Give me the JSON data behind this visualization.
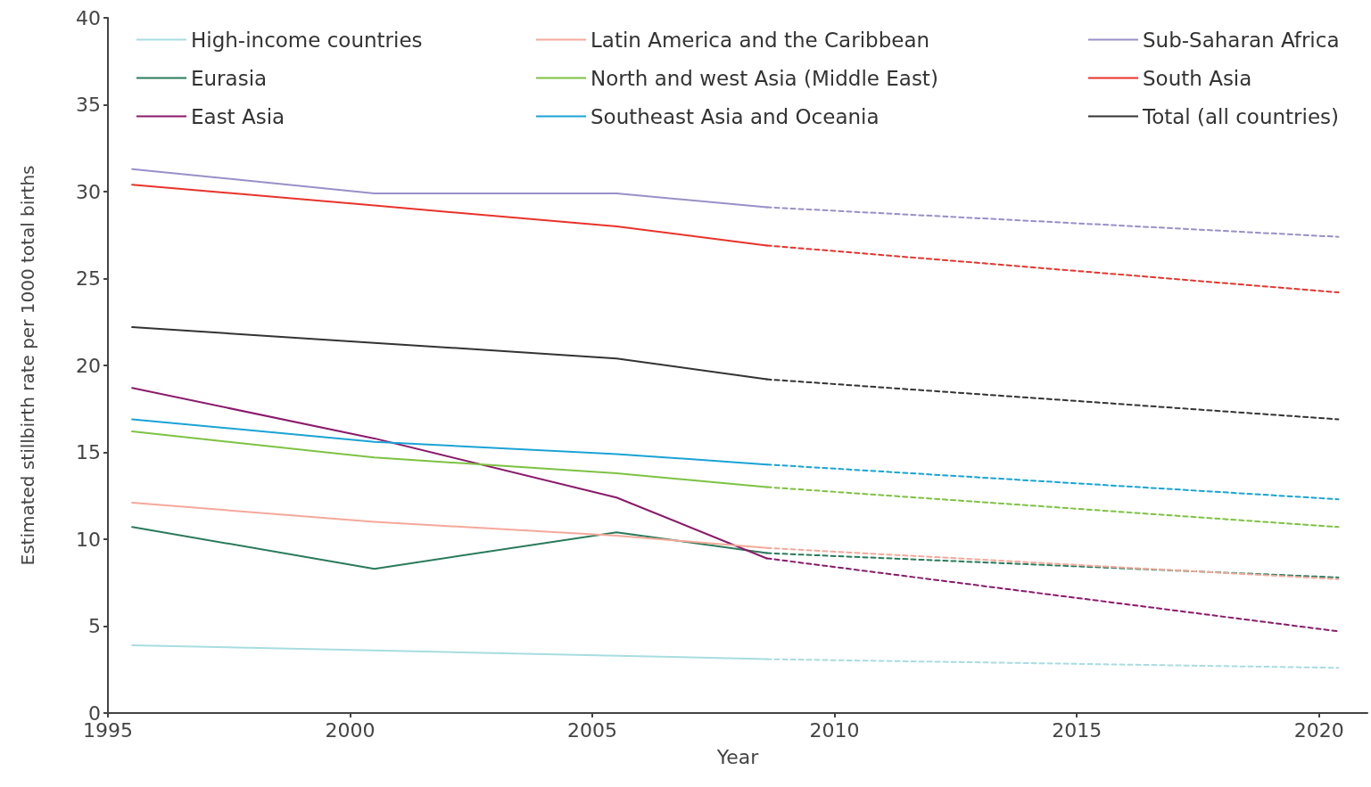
{
  "chart_data": {
    "type": "line",
    "xlabel": "Year",
    "ylabel": "Estimated stillbirth rate per 1000 total births",
    "xlim": [
      1995,
      2021
    ],
    "xticks": [
      1995,
      2000,
      2005,
      2010,
      2015,
      2020
    ],
    "ylim": [
      0,
      40
    ],
    "yticks": [
      0,
      5,
      10,
      15,
      20,
      25,
      30,
      35,
      40
    ],
    "grid": false,
    "legend": "top",
    "marker": "none",
    "series": [
      {
        "name": "High-income countries",
        "color": "#a8dde0",
        "line_style": "solid",
        "x": [
          1995.5,
          2000.5,
          2005.5,
          2008.6
        ],
        "values": [
          3.9,
          3.6,
          3.3,
          3.1
        ]
      },
      {
        "name": "Eurasia",
        "color": "#2a7a5a",
        "line_style": "solid",
        "x": [
          1995.5,
          2000.5,
          2005.5,
          2008.6
        ],
        "values": [
          10.7,
          8.3,
          10.4,
          9.2
        ]
      },
      {
        "name": "East Asia",
        "color": "#8b1a6b",
        "line_style": "solid",
        "x": [
          1995.5,
          2000.5,
          2005.5,
          2008.6
        ],
        "values": [
          18.7,
          15.8,
          12.4,
          8.9
        ]
      },
      {
        "name": "Latin America and the Caribbean",
        "color": "#f4a99a",
        "line_style": "solid",
        "x": [
          1995.5,
          2000.5,
          2005.5,
          2008.6
        ],
        "values": [
          12.1,
          11.0,
          10.2,
          9.5
        ]
      },
      {
        "name": "North and west Asia (Middle East)",
        "color": "#7dc242",
        "line_style": "solid",
        "x": [
          1995.5,
          2000.5,
          2005.5,
          2008.6
        ],
        "values": [
          16.2,
          14.7,
          13.8,
          13.0
        ]
      },
      {
        "name": "Southeast Asia and Oceania",
        "color": "#1aa3d4",
        "line_style": "solid",
        "x": [
          1995.5,
          2000.5,
          2005.5,
          2008.6
        ],
        "values": [
          16.9,
          15.6,
          14.9,
          14.3
        ]
      },
      {
        "name": "Sub-Saharan Africa",
        "color": "#9a8fc8",
        "line_style": "solid",
        "x": [
          1995.5,
          2000.5,
          2005.5,
          2008.6
        ],
        "values": [
          31.3,
          29.9,
          29.9,
          29.1
        ]
      },
      {
        "name": "South Asia",
        "color": "#e8332a",
        "line_style": "solid",
        "x": [
          1995.5,
          2000.5,
          2005.5,
          2008.6
        ],
        "values": [
          30.4,
          29.2,
          28.0,
          26.9
        ]
      },
      {
        "name": "Total (all countries)",
        "color": "#333333",
        "line_style": "solid",
        "x": [
          1995.5,
          2000.5,
          2005.5,
          2008.6
        ],
        "values": [
          22.2,
          21.3,
          20.4,
          19.2
        ]
      },
      {
        "color": "#a8dde0",
        "line_style": "dashed",
        "x": [
          2008.6,
          2020.4
        ],
        "values": [
          3.1,
          2.6
        ]
      },
      {
        "color": "#2a7a5a",
        "line_style": "dashed",
        "x": [
          2008.6,
          2020.4
        ],
        "values": [
          9.2,
          7.8
        ]
      },
      {
        "color": "#8b1a6b",
        "line_style": "dashed",
        "x": [
          2008.6,
          2020.4
        ],
        "values": [
          8.9,
          4.7
        ]
      },
      {
        "color": "#f4a99a",
        "line_style": "dashed",
        "x": [
          2008.6,
          2020.4
        ],
        "values": [
          9.5,
          7.7
        ]
      },
      {
        "color": "#7dc242",
        "line_style": "dashed",
        "x": [
          2008.6,
          2020.4
        ],
        "values": [
          13.0,
          10.7
        ]
      },
      {
        "color": "#1aa3d4",
        "line_style": "dashed",
        "x": [
          2008.6,
          2020.4
        ],
        "values": [
          14.3,
          12.3
        ]
      },
      {
        "color": "#9a8fc8",
        "line_style": "dashed",
        "x": [
          2008.6,
          2020.4
        ],
        "values": [
          29.1,
          27.4
        ]
      },
      {
        "color": "#e8332a",
        "line_style": "dashed",
        "x": [
          2008.6,
          2020.4
        ],
        "values": [
          26.9,
          24.2
        ]
      },
      {
        "color": "#333333",
        "line_style": "dashed",
        "x": [
          2008.6,
          2020.4
        ],
        "values": [
          19.2,
          16.9
        ]
      }
    ]
  }
}
